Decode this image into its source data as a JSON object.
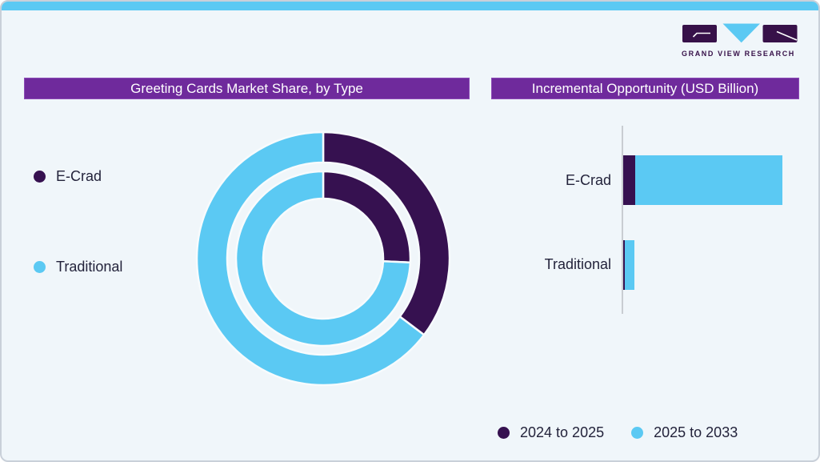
{
  "logo": {
    "text": "GRAND VIEW RESEARCH"
  },
  "colors": {
    "dark_purple": "#361150",
    "light_blue": "#5bc9f3",
    "title_bar_bg": "#6f2a9c",
    "card_bg": "#f0f6fa",
    "card_border": "#c9d0d9",
    "label_text": "#23233b",
    "axis_gray": "#c9cdd2"
  },
  "chart_data": [
    {
      "type": "donut",
      "title": "Greeting Cards Market Share, by Type",
      "categories": [
        "E-Crad",
        "Traditional"
      ],
      "colors": [
        "#361150",
        "#5bc9f3"
      ],
      "start_angle_deg": 0,
      "direction": "clockwise",
      "legend_position": "left",
      "rings": [
        {
          "name": "outer",
          "values_pct": [
            35.3,
            64.7
          ]
        },
        {
          "name": "inner",
          "values_pct": [
            25.7,
            74.3
          ]
        }
      ]
    },
    {
      "type": "bar",
      "orientation": "horizontal",
      "stacked": true,
      "title": "Incremental Opportunity (USD Billion)",
      "categories": [
        "E-Crad",
        "Traditional"
      ],
      "colors": [
        "#361150",
        "#5bc9f3"
      ],
      "series": [
        {
          "name": "2024 to 2025",
          "values": [
            15,
            2
          ]
        },
        {
          "name": "2025 to 2033",
          "values": [
            184,
            12
          ]
        }
      ],
      "value_axis": {
        "visible": false,
        "units": "USD Billion",
        "range_relative": [
          0,
          220
        ]
      },
      "legend_position": "bottom"
    }
  ]
}
